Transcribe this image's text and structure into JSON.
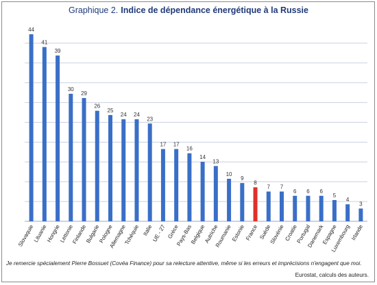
{
  "title": {
    "prefix": "Graphique 2.",
    "main": "Indice de dépendance énergétique à la Russie"
  },
  "footnote": "Je remercie spécialement Pierre Bossuet (Covéa Finance) pour sa relecture attentive, même si les erreurs et imprécisions n'engagent que moi.",
  "source": "Eurostat, calculs des auteurs.",
  "colors": {
    "bar": "#3a6fc7",
    "highlight": "#e0302a",
    "grid": "#c8d0e0",
    "title": "#1f3a78"
  },
  "chart_data": {
    "type": "bar",
    "title": "Indice de dépendance énergétique à la Russie",
    "xlabel": "",
    "ylabel": "",
    "ylim": [
      0,
      44
    ],
    "grid": true,
    "highlight_category": "France",
    "categories": [
      "Slovaquie",
      "Lituanie",
      "Hongrie",
      "Lettonie",
      "Finlande",
      "Bulgarie",
      "Pologne",
      "Allemagne",
      "Tchéquie",
      "Italie",
      "UE - 27",
      "Grèce",
      "Pays-Bas",
      "Belgique",
      "Autriche",
      "Roumanie",
      "Estonie",
      "France",
      "Suède",
      "Slovénie",
      "Croatie",
      "Portugal",
      "Danemark",
      "Espagne",
      "Luxembourg",
      "Irlande"
    ],
    "values": [
      44,
      41,
      39,
      30,
      29,
      26,
      25,
      24,
      24,
      23,
      17,
      17,
      16,
      14,
      13,
      10,
      9,
      8,
      7,
      7,
      6,
      6,
      6,
      5,
      4,
      3
    ],
    "data_labels": [
      "44",
      "41",
      "39",
      "30",
      "29",
      "26",
      "25",
      "24",
      "24",
      "23",
      "17",
      "17",
      "16",
      "14",
      "13",
      "10",
      "9",
      "8",
      "7",
      "7",
      "6",
      "6",
      "6",
      "5",
      "4",
      "3"
    ]
  }
}
